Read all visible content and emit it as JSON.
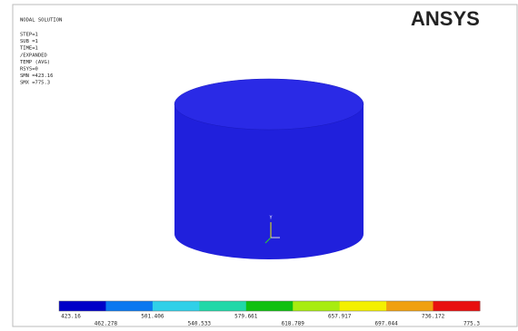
{
  "header": {
    "title": "NODAL SOLUTION",
    "logo": "ANSYS"
  },
  "info": [
    "STEP=1",
    "SUB =1",
    "TIME=1",
    "/EXPANDED",
    "TEMP     (AVG)",
    "RSYS=0",
    "SMN =423.16",
    "SMX =775.3"
  ],
  "triad": {
    "axis": "Y"
  },
  "legend": {
    "labels": [
      "423.16",
      "462.278",
      "501.406",
      "540.533",
      "579.661",
      "618.789",
      "657.917",
      "697.044",
      "736.172",
      "775.3"
    ],
    "colors": [
      "#0000c8",
      "#0a78f0",
      "#30d0e8",
      "#20d8a8",
      "#10c010",
      "#a8ec10",
      "#f4f000",
      "#f0a010",
      "#e81010"
    ]
  }
}
